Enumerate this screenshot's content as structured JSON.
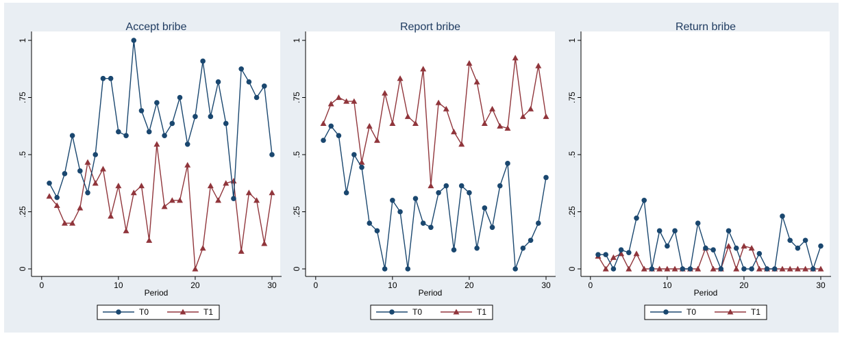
{
  "colors": {
    "background": "#e9eef3",
    "plot_area": "#ffffff",
    "T0": "#1a476f",
    "T1": "#90353b",
    "axis": "#000000"
  },
  "legend_labels": [
    "T0",
    "T1"
  ],
  "chart_data": [
    {
      "type": "line",
      "title": "Accept bribe",
      "xlabel": "Period",
      "ylabel": "",
      "xlim": [
        1,
        30
      ],
      "ylim": [
        0,
        1
      ],
      "xticks": [
        0,
        10,
        20,
        30
      ],
      "yticks": [
        0,
        0.25,
        0.5,
        0.75,
        1
      ],
      "ytick_labels": [
        "0",
        ".25",
        ".5",
        ".75",
        "1"
      ],
      "legend_position": "bottom",
      "x": [
        1,
        2,
        3,
        4,
        5,
        6,
        7,
        8,
        9,
        10,
        11,
        12,
        13,
        14,
        15,
        16,
        17,
        18,
        19,
        20,
        21,
        22,
        23,
        24,
        25,
        26,
        27,
        28,
        29,
        30
      ],
      "series": [
        {
          "name": "T0",
          "marker": "circle",
          "color": "#1a476f",
          "values": [
            0.375,
            0.3125,
            0.4167,
            0.5833,
            0.4286,
            0.3333,
            0.5,
            0.8333,
            0.8333,
            0.6,
            0.5833,
            1.0,
            0.6923,
            0.6,
            0.7273,
            0.5833,
            0.6364,
            0.75,
            0.5455,
            0.6667,
            0.9091,
            0.6667,
            0.8182,
            0.6364,
            0.3077,
            0.875,
            0.8182,
            0.75,
            0.8,
            0.5
          ]
        },
        {
          "name": "T1",
          "marker": "triangle",
          "color": "#90353b",
          "values": [
            0.3182,
            0.2778,
            0.2,
            0.2,
            0.2667,
            0.4667,
            0.375,
            0.4375,
            0.2308,
            0.3636,
            0.1667,
            0.3333,
            0.3636,
            0.125,
            0.5455,
            0.2727,
            0.3,
            0.3,
            0.4545,
            0.0,
            0.0909,
            0.3636,
            0.3,
            0.375,
            0.3846,
            0.0769,
            0.3333,
            0.3,
            0.1111,
            0.3333
          ]
        }
      ]
    },
    {
      "type": "line",
      "title": "Report bribe",
      "xlabel": "Period",
      "ylabel": "",
      "xlim": [
        1,
        30
      ],
      "ylim": [
        0,
        1
      ],
      "xticks": [
        0,
        10,
        20,
        30
      ],
      "yticks": [
        0,
        0.25,
        0.5,
        0.75,
        1
      ],
      "ytick_labels": [
        "0",
        ".25",
        ".5",
        ".75",
        "1"
      ],
      "legend_position": "bottom",
      "x": [
        1,
        2,
        3,
        4,
        5,
        6,
        7,
        8,
        9,
        10,
        11,
        12,
        13,
        14,
        15,
        16,
        17,
        18,
        19,
        20,
        21,
        22,
        23,
        24,
        25,
        26,
        27,
        28,
        29,
        30
      ],
      "series": [
        {
          "name": "T0",
          "marker": "circle",
          "color": "#1a476f",
          "values": [
            0.5625,
            0.625,
            0.5833,
            0.3333,
            0.5,
            0.4444,
            0.2,
            0.1667,
            0.0,
            0.3,
            0.25,
            0.0,
            0.3077,
            0.2,
            0.1818,
            0.3333,
            0.3636,
            0.0833,
            0.3636,
            0.3333,
            0.0909,
            0.2667,
            0.1818,
            0.3636,
            0.4615,
            0.0,
            0.0909,
            0.125,
            0.2,
            0.4
          ]
        },
        {
          "name": "T1",
          "marker": "triangle",
          "color": "#90353b",
          "values": [
            0.6364,
            0.7222,
            0.75,
            0.7333,
            0.7333,
            0.4667,
            0.625,
            0.5625,
            0.7692,
            0.6364,
            0.8333,
            0.6667,
            0.6364,
            0.875,
            0.3636,
            0.7273,
            0.7,
            0.6,
            0.5455,
            0.9,
            0.8182,
            0.6364,
            0.7,
            0.625,
            0.6154,
            0.9231,
            0.6667,
            0.7,
            0.8889,
            0.6667
          ]
        }
      ]
    },
    {
      "type": "line",
      "title": "Return bribe",
      "xlabel": "Period",
      "ylabel": "",
      "xlim": [
        1,
        30
      ],
      "ylim": [
        0,
        1
      ],
      "xticks": [
        0,
        10,
        20,
        30
      ],
      "yticks": [
        0,
        0.25,
        0.5,
        0.75,
        1
      ],
      "ytick_labels": [
        "0",
        ".25",
        ".5",
        ".75",
        "1"
      ],
      "legend_position": "bottom",
      "x": [
        1,
        2,
        3,
        4,
        5,
        6,
        7,
        8,
        9,
        10,
        11,
        12,
        13,
        14,
        15,
        16,
        17,
        18,
        19,
        20,
        21,
        22,
        23,
        24,
        25,
        26,
        27,
        28,
        29,
        30
      ],
      "series": [
        {
          "name": "T0",
          "marker": "circle",
          "color": "#1a476f",
          "values": [
            0.0625,
            0.0625,
            0.0,
            0.0833,
            0.0714,
            0.2222,
            0.3,
            0.0,
            0.1667,
            0.1,
            0.1667,
            0.0,
            0.0,
            0.2,
            0.0909,
            0.0833,
            0.0,
            0.1667,
            0.0909,
            0.0,
            0.0,
            0.0667,
            0.0,
            0.0,
            0.2308,
            0.125,
            0.0909,
            0.125,
            0.0,
            0.1
          ]
        },
        {
          "name": "T1",
          "marker": "triangle",
          "color": "#90353b",
          "values": [
            0.0556,
            0.0,
            0.05,
            0.0667,
            0.0,
            0.0667,
            0.0,
            0.0,
            0.0,
            0.0,
            0.0,
            0.0,
            0.0,
            0.0,
            0.0909,
            0.0,
            0.0,
            0.1,
            0.0,
            0.1,
            0.0909,
            0.0,
            0.0,
            0.0,
            0.0,
            0.0,
            0.0,
            0.0,
            0.0,
            0.0
          ]
        }
      ]
    }
  ]
}
